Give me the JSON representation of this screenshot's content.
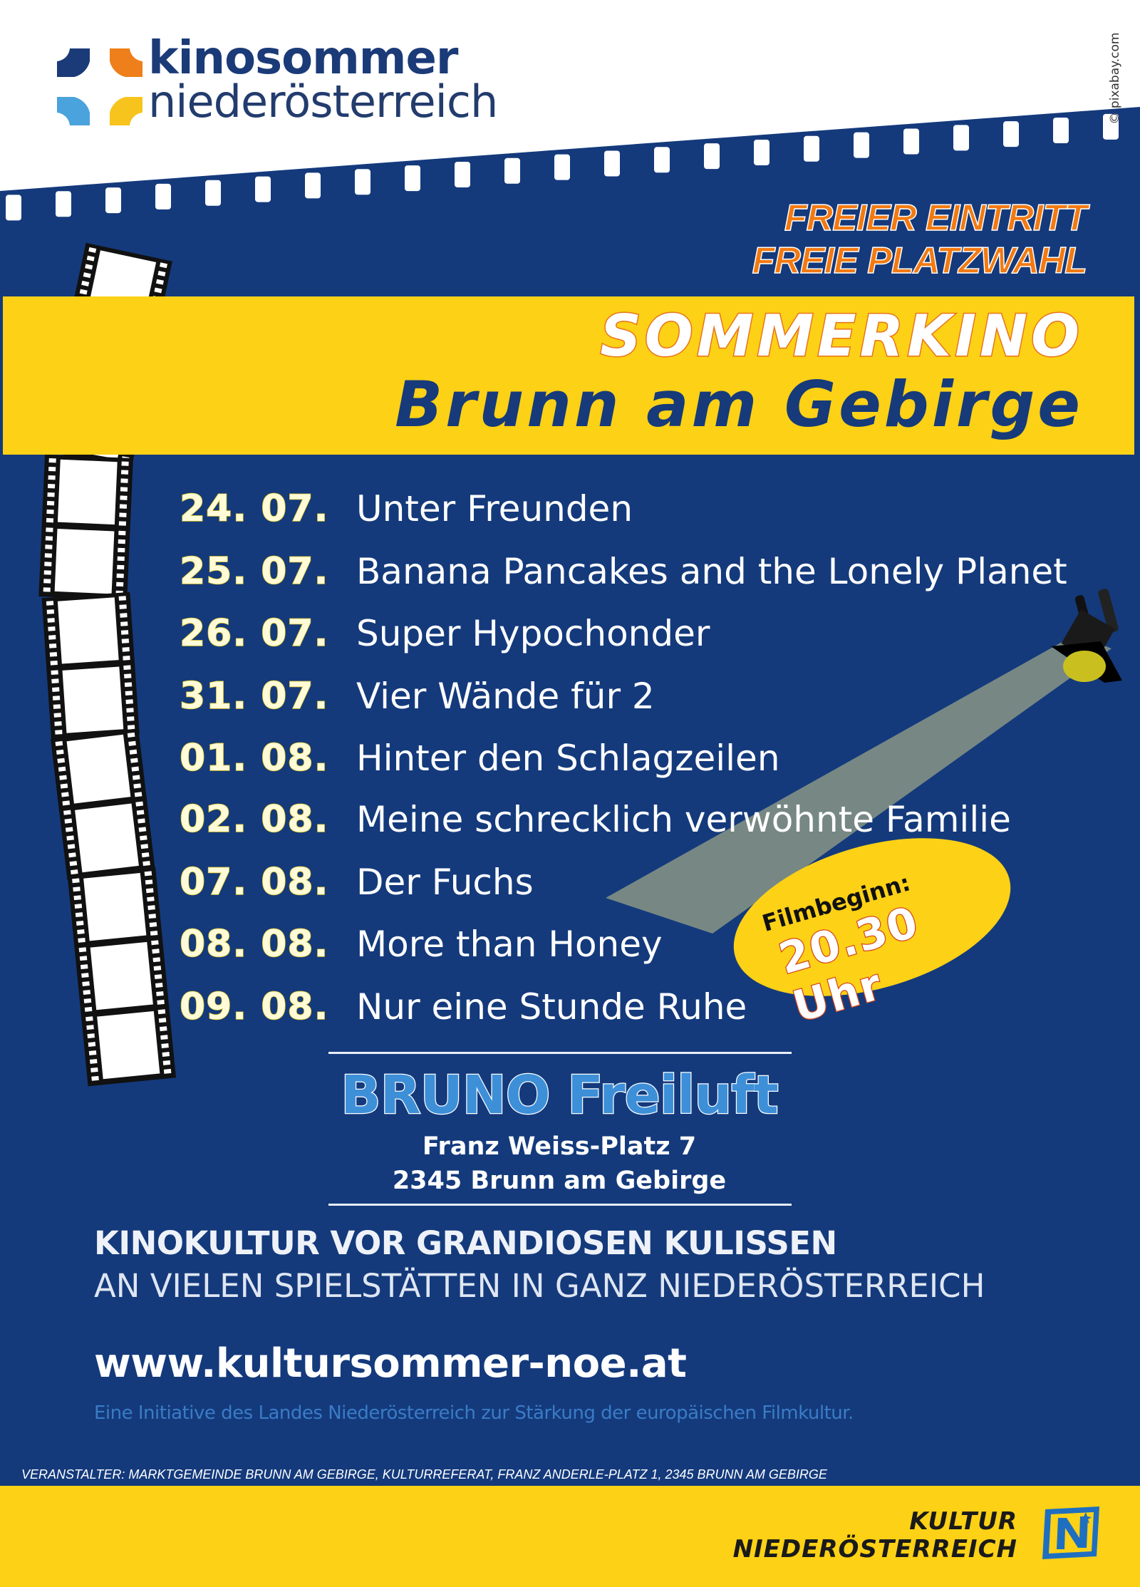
{
  "colors": {
    "blue": "#143a7c",
    "yellow": "#fcd116",
    "orange": "#f27a12",
    "venue_blue": "#3d8fd8"
  },
  "logo": {
    "line1": "kinosommer",
    "line2": "niederösterreich",
    "icon": "kinosommer-star-logo"
  },
  "credit": "© pixabay.com",
  "offer": {
    "line1": "FREIER EINTRITT",
    "line2": "FREIE PLATZWAHL"
  },
  "title": {
    "line1": "SOMMERKINO",
    "line2": "Brunn am Gebirge"
  },
  "schedule": [
    {
      "date": "24. 07.",
      "film": "Unter Freunden"
    },
    {
      "date": "25. 07.",
      "film": "Banana Pancakes and the Lonely Planet"
    },
    {
      "date": "26. 07.",
      "film": "Super Hypochonder"
    },
    {
      "date": "31. 07.",
      "film": "Vier Wände für 2"
    },
    {
      "date": "01. 08.",
      "film": "Hinter den Schlagzeilen"
    },
    {
      "date": "02. 08.",
      "film": "Meine schrecklich verwöhnte Familie"
    },
    {
      "date": "07. 08.",
      "film": "Der Fuchs"
    },
    {
      "date": "08. 08.",
      "film": "More than Honey"
    },
    {
      "date": "09. 08.",
      "film": "Nur eine Stunde Ruhe"
    }
  ],
  "badge": {
    "label": "Filmbeginn:",
    "time": "20.30 Uhr"
  },
  "venue": {
    "name": "BRUNO Freiluft",
    "street": "Franz Weiss-Platz 7",
    "city": "2345 Brunn am Gebirge"
  },
  "tagline": {
    "line1": "KINOKULTUR VOR GRANDIOSEN KULISSEN",
    "line2": "AN VIELEN SPIELSTÄTTEN IN GANZ NIEDERÖSTERREICH"
  },
  "website": "www.kultursommer-noe.at",
  "initiative": "Eine Initiative des Landes Niederösterreich zur Stärkung der europäischen Filmkultur.",
  "organizer": "VERANSTALTER: MARKTGEMEINDE BRUNN AM GEBIRGE, KULTURREFERAT, FRANZ ANDERLE-PLATZ 1, 2345 BRUNN AM GEBIRGE",
  "footer": {
    "line1": "KULTUR",
    "line2": "NIEDERÖSTERREICH",
    "logo": "noe-logo"
  }
}
